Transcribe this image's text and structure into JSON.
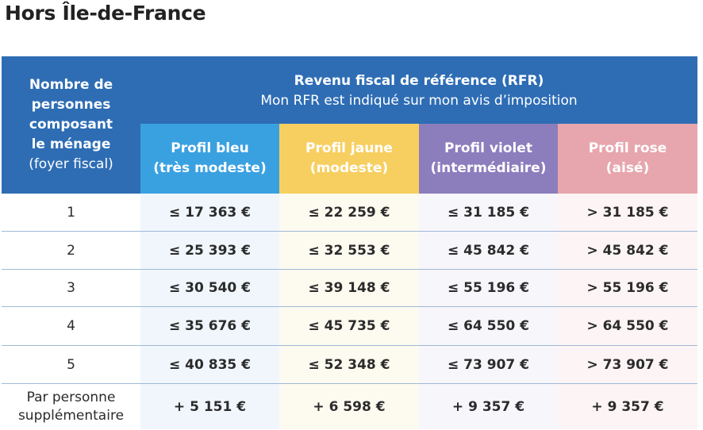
{
  "title": "Hors Île-de-France",
  "header": {
    "left_line1": "Nombre de",
    "left_line2": "personnes",
    "left_line3": "composant",
    "left_line4": "le ménage",
    "left_line5": "(foyer fiscal)",
    "top_line1": "Revenu fiscal de référence (RFR)",
    "top_line2": "Mon RFR est indiqué sur mon avis d’imposition"
  },
  "profiles": [
    {
      "name": "Profil bleu",
      "sub": "(très modeste)",
      "color": "#3aa1e1"
    },
    {
      "name": "Profil jaune",
      "sub": "(modeste)",
      "color": "#f7cf60"
    },
    {
      "name": "Profil violet",
      "sub": "(intermédiaire)",
      "color": "#8c7dbd"
    },
    {
      "name": "Profil rose",
      "sub": "(aisé)",
      "color": "#e7a6ad"
    }
  ],
  "rows": [
    {
      "n": "1",
      "v": [
        "≤ 17 363 €",
        "≤ 22 259 €",
        "≤ 31 185 €",
        "> 31 185 €"
      ]
    },
    {
      "n": "2",
      "v": [
        "≤ 25 393 €",
        "≤ 32 553 €",
        "≤ 45 842 €",
        "> 45 842 €"
      ]
    },
    {
      "n": "3",
      "v": [
        "≤ 30 540 €",
        "≤ 39 148 €",
        "≤ 55 196 €",
        "> 55 196 €"
      ]
    },
    {
      "n": "4",
      "v": [
        "≤ 35 676 €",
        "≤ 45 735 €",
        "≤ 64 550 €",
        "> 64 550 €"
      ]
    },
    {
      "n": "5",
      "v": [
        "≤ 40 835 €",
        "≤ 52 348 €",
        "≤ 73 907 €",
        "> 73 907 €"
      ]
    }
  ],
  "extra": {
    "label_line1": "Par personne",
    "label_line2": "supplémentaire",
    "v": [
      "+ 5 151 €",
      "+ 6 598 €",
      "+ 9 357 €",
      "+ 9 357 €"
    ]
  }
}
